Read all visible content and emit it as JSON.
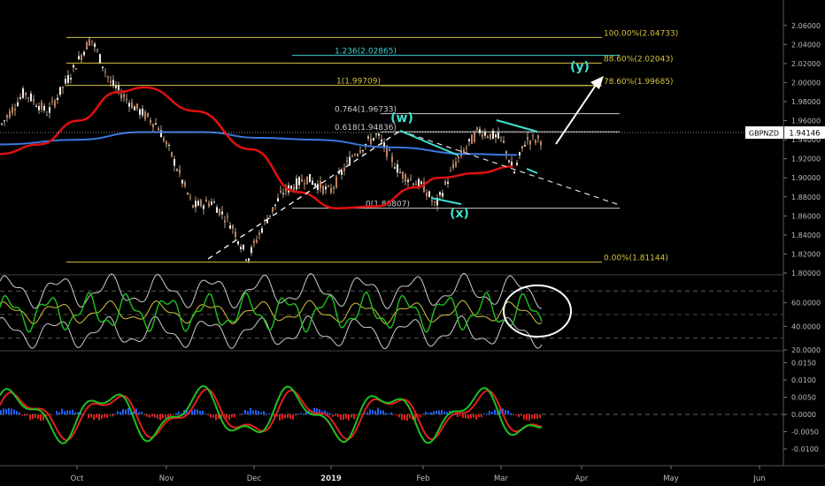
{
  "symbol": "GBPNZD",
  "last_price": "1.94146",
  "chart_data": [
    {
      "type": "line",
      "panel": "price",
      "title": "",
      "y_range": [
        1.8,
        2.07
      ],
      "price_ticks": [
        "2.06000",
        "2.04000",
        "2.02000",
        "2.00000",
        "1.98000",
        "1.96000",
        "1.94000",
        "1.92000",
        "1.90000",
        "1.88000",
        "1.86000",
        "1.84000",
        "1.82000",
        "1.80000"
      ],
      "fib_levels": [
        {
          "label": "100.00%(2.04733)",
          "value": 2.04733,
          "color": "#d4c43c"
        },
        {
          "label": "1.236(2.02865)",
          "value": 2.02865,
          "color": "#40d0d0"
        },
        {
          "label": "88.60%(2.02043)",
          "value": 2.02043,
          "color": "#d4c43c"
        },
        {
          "label": "1(1.99709)",
          "value": 1.99709,
          "color": "#d4c43c"
        },
        {
          "label": "78.60%(1.99685)",
          "value": 1.99685,
          "color": "#d4c43c"
        },
        {
          "label": "0.764(1.96733)",
          "value": 1.96733,
          "color": "#cccccc"
        },
        {
          "label": "0.618(1.94836)",
          "value": 1.94836,
          "color": "#cccccc"
        },
        {
          "label": "0(1.86807)",
          "value": 1.86807,
          "color": "#cccccc"
        },
        {
          "label": "0.00%(1.81144)",
          "value": 1.81144,
          "color": "#d4c43c"
        }
      ],
      "wave_labels": [
        "(w)",
        "(x)",
        "(y)"
      ],
      "x_labels": [
        "Oct",
        "Nov",
        "Dec",
        "2019",
        "Feb",
        "Mar",
        "Apr",
        "May",
        "Jun"
      ],
      "price_path": [
        [
          0,
          1.955
        ],
        [
          0.03,
          1.99
        ],
        [
          0.06,
          1.968
        ],
        [
          0.09,
          2.01
        ],
        [
          0.115,
          2.047
        ],
        [
          0.14,
          2.0
        ],
        [
          0.17,
          1.975
        ],
        [
          0.2,
          1.955
        ],
        [
          0.22,
          1.92
        ],
        [
          0.245,
          1.87
        ],
        [
          0.27,
          1.875
        ],
        [
          0.295,
          1.85
        ],
        [
          0.315,
          1.815
        ],
        [
          0.335,
          1.85
        ],
        [
          0.36,
          1.885
        ],
        [
          0.39,
          1.9
        ],
        [
          0.42,
          1.885
        ],
        [
          0.45,
          1.925
        ],
        [
          0.48,
          1.945
        ],
        [
          0.51,
          1.905
        ],
        [
          0.54,
          1.89
        ],
        [
          0.555,
          1.87
        ],
        [
          0.58,
          1.915
        ],
        [
          0.61,
          1.95
        ],
        [
          0.64,
          1.94
        ],
        [
          0.655,
          1.905
        ],
        [
          0.67,
          1.94
        ]
      ],
      "ema_path": [
        [
          0,
          1.925
        ],
        [
          0.05,
          1.935
        ],
        [
          0.1,
          1.96
        ],
        [
          0.15,
          1.99
        ],
        [
          0.185,
          1.995
        ],
        [
          0.25,
          1.97
        ],
        [
          0.32,
          1.93
        ],
        [
          0.38,
          1.885
        ],
        [
          0.43,
          1.868
        ],
        [
          0.48,
          1.87
        ],
        [
          0.53,
          1.89
        ],
        [
          0.56,
          1.9
        ],
        [
          0.61,
          1.905
        ],
        [
          0.655,
          1.912
        ]
      ],
      "sma_path": [
        [
          0,
          1.935
        ],
        [
          0.1,
          1.94
        ],
        [
          0.18,
          1.948
        ],
        [
          0.26,
          1.948
        ],
        [
          0.33,
          1.942
        ],
        [
          0.4,
          1.94
        ],
        [
          0.5,
          1.932
        ],
        [
          0.6,
          1.925
        ],
        [
          0.66,
          1.924
        ]
      ]
    },
    {
      "type": "line",
      "panel": "oscillator",
      "y_range": [
        20,
        80
      ],
      "ticks": [
        "60.0000",
        "40.0000",
        "20.0000"
      ],
      "levels": [
        70,
        50,
        30
      ]
    },
    {
      "type": "bar",
      "panel": "macd",
      "y_range": [
        -0.012,
        0.016
      ],
      "ticks": [
        "0.0150",
        "0.0100",
        "0.0050",
        "0.0000",
        "-0.0050",
        "-0.0100"
      ]
    }
  ],
  "colors": {
    "background": "#000000",
    "candles": "#e8c8a8",
    "ema": "#e01010",
    "sma": "#3a78e0",
    "cyan": "#40e0d0",
    "green": "#20c020",
    "red": "#e02020",
    "blue": "#2060ff"
  }
}
